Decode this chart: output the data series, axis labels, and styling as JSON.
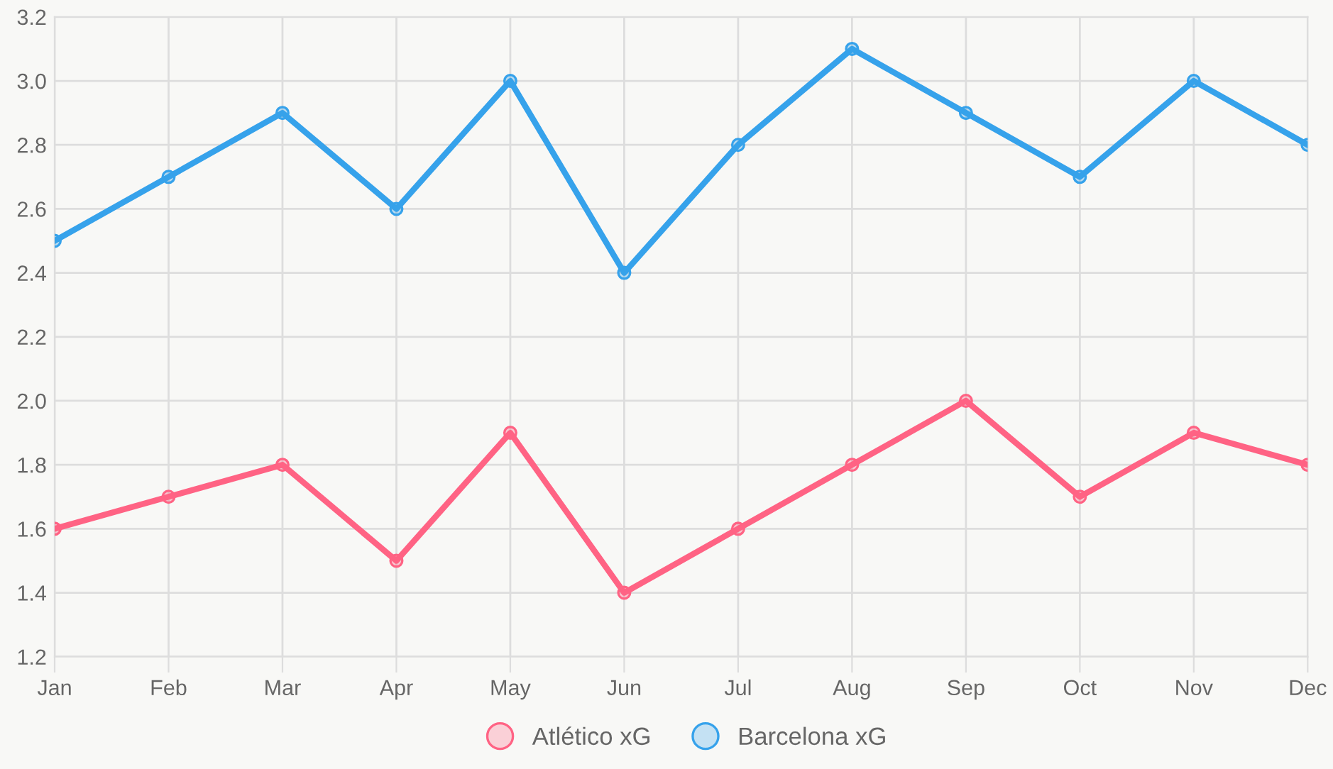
{
  "chart_data": {
    "type": "line",
    "categories": [
      "Jan",
      "Feb",
      "Mar",
      "Apr",
      "May",
      "Jun",
      "Jul",
      "Aug",
      "Sep",
      "Oct",
      "Nov",
      "Dec"
    ],
    "series": [
      {
        "name": "Atlético xG",
        "color": "#ff6384",
        "values": [
          1.6,
          1.7,
          1.8,
          1.5,
          1.9,
          1.4,
          1.6,
          1.8,
          2.0,
          1.7,
          1.9,
          1.8
        ]
      },
      {
        "name": "Barcelona xG",
        "color": "#36a2eb",
        "values": [
          2.5,
          2.7,
          2.9,
          2.6,
          3.0,
          2.4,
          2.8,
          3.1,
          2.9,
          2.7,
          3.0,
          2.8
        ]
      }
    ],
    "ylim": [
      1.2,
      3.2
    ],
    "yticks": [
      1.2,
      1.4,
      1.6,
      1.8,
      {
        "value": 2.0,
        "label": "2.0"
      },
      2.2,
      2.4,
      2.6,
      2.8,
      {
        "value": 3.0,
        "label": "3.0"
      },
      3.2
    ],
    "grid": true,
    "legend": "bottom",
    "marker": "circle",
    "line_style": "solid"
  }
}
